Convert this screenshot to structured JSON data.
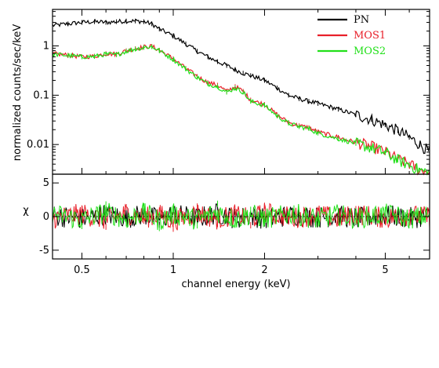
{
  "chart_data": [
    {
      "type": "line",
      "panel": "spectrum",
      "ylabel": "normalized counts/sec/keV",
      "xscale": "log",
      "yscale": "log",
      "xlim": [
        0.4,
        7.0
      ],
      "ylim": [
        0.0025,
        5.5
      ],
      "ytick_labels": [
        "1",
        "0.1",
        "0.01"
      ],
      "ytick_values": [
        1,
        0.1,
        0.01
      ],
      "legend_position": "top-right",
      "series": [
        {
          "name": "PN",
          "color": "#000000",
          "x": [
            0.4,
            0.45,
            0.5,
            0.55,
            0.6,
            0.65,
            0.7,
            0.75,
            0.8,
            0.85,
            0.9,
            1.0,
            1.1,
            1.2,
            1.3,
            1.4,
            1.5,
            1.6,
            1.7,
            1.8,
            2.0,
            2.2,
            2.4,
            2.6,
            2.8,
            3.0,
            3.5,
            4.0,
            4.5,
            5.0,
            5.5,
            6.0,
            6.5,
            7.0
          ],
          "y": [
            2.6,
            2.8,
            3.0,
            3.1,
            3.0,
            3.1,
            3.2,
            3.2,
            3.1,
            2.8,
            2.2,
            1.6,
            1.1,
            0.78,
            0.6,
            0.48,
            0.4,
            0.33,
            0.28,
            0.25,
            0.2,
            0.14,
            0.1,
            0.085,
            0.075,
            0.068,
            0.052,
            0.04,
            0.032,
            0.025,
            0.019,
            0.014,
            0.01,
            0.007
          ]
        },
        {
          "name": "MOS1",
          "color": "#e8202a",
          "x": [
            0.4,
            0.45,
            0.5,
            0.55,
            0.6,
            0.65,
            0.7,
            0.75,
            0.8,
            0.85,
            0.9,
            1.0,
            1.1,
            1.2,
            1.3,
            1.4,
            1.5,
            1.6,
            1.7,
            1.8,
            2.0,
            2.2,
            2.4,
            2.6,
            2.8,
            3.0,
            3.5,
            4.0,
            4.5,
            5.0,
            5.5,
            6.0,
            6.5,
            7.0
          ],
          "y": [
            0.7,
            0.65,
            0.6,
            0.62,
            0.7,
            0.68,
            0.8,
            0.88,
            0.95,
            0.98,
            0.82,
            0.55,
            0.35,
            0.24,
            0.18,
            0.16,
            0.12,
            0.15,
            0.12,
            0.08,
            0.065,
            0.04,
            0.028,
            0.024,
            0.022,
            0.018,
            0.014,
            0.011,
            0.009,
            0.007,
            0.005,
            0.004,
            0.003,
            0.0028
          ]
        },
        {
          "name": "MOS2",
          "color": "#22e01a",
          "x": [
            0.4,
            0.45,
            0.5,
            0.55,
            0.6,
            0.65,
            0.7,
            0.75,
            0.8,
            0.85,
            0.9,
            1.0,
            1.1,
            1.2,
            1.3,
            1.4,
            1.5,
            1.6,
            1.7,
            1.8,
            2.0,
            2.2,
            2.4,
            2.6,
            2.8,
            3.0,
            3.5,
            4.0,
            4.5,
            5.0,
            5.5,
            6.0,
            6.5,
            7.0
          ],
          "y": [
            0.68,
            0.64,
            0.6,
            0.61,
            0.68,
            0.66,
            0.78,
            0.86,
            0.93,
            0.96,
            0.8,
            0.53,
            0.34,
            0.23,
            0.17,
            0.15,
            0.115,
            0.14,
            0.115,
            0.075,
            0.062,
            0.038,
            0.027,
            0.023,
            0.021,
            0.017,
            0.013,
            0.0105,
            0.0085,
            0.0068,
            0.0048,
            0.0038,
            0.003,
            0.0027
          ]
        }
      ]
    },
    {
      "type": "line",
      "panel": "residuals",
      "ylabel": "χ",
      "xlabel": "channel energy (keV)",
      "xscale": "log",
      "xlim": [
        0.4,
        7.0
      ],
      "ylim": [
        -6.3,
        6.3
      ],
      "ytick_labels": [
        "5",
        "0",
        "-5"
      ],
      "ytick_values": [
        5,
        0,
        -5
      ],
      "xtick_labels": [
        "0.5",
        "1",
        "2",
        "5"
      ],
      "xtick_values": [
        0.5,
        1,
        2,
        5
      ],
      "series": [
        {
          "name": "PN",
          "color": "#000000",
          "x": [
            0.4,
            0.5,
            0.6,
            0.7,
            0.8,
            0.9,
            1.0,
            1.2,
            1.4,
            1.6,
            1.8,
            2.0,
            2.5,
            3.0,
            3.5,
            4.0,
            5.0,
            6.0,
            7.0
          ],
          "y": [
            0.5,
            -1.0,
            1.0,
            -0.5,
            0.8,
            -1.2,
            1.0,
            -0.6,
            1.3,
            -0.8,
            0.4,
            -1.0,
            0.6,
            -0.4,
            0.3,
            -0.8,
            0.5,
            -0.6,
            0.2
          ]
        },
        {
          "name": "MOS1",
          "color": "#e8202a",
          "x": [
            0.4,
            0.5,
            0.6,
            0.7,
            0.8,
            0.9,
            1.0,
            1.2,
            1.4,
            1.6,
            1.8,
            2.0,
            2.5,
            3.0,
            3.5,
            4.0,
            5.0,
            6.0,
            7.0
          ],
          "y": [
            -0.8,
            1.2,
            -1.5,
            1.4,
            -0.6,
            0.9,
            -1.8,
            1.5,
            -1.1,
            0.7,
            -1.3,
            1.6,
            -0.5,
            0.8,
            -0.9,
            1.1,
            -0.7,
            0.6,
            -0.3
          ]
        },
        {
          "name": "MOS2",
          "color": "#22e01a",
          "x": [
            0.4,
            0.5,
            0.6,
            0.7,
            0.8,
            0.9,
            1.0,
            1.2,
            1.4,
            1.6,
            1.8,
            2.0,
            2.5,
            3.0,
            3.5,
            4.0,
            5.0,
            6.0,
            7.0
          ],
          "y": [
            1.0,
            -1.4,
            1.8,
            -1.0,
            1.5,
            -1.7,
            1.1,
            -1.3,
            1.9,
            -1.2,
            1.0,
            -0.9,
            1.2,
            -1.1,
            0.8,
            -0.7,
            1.0,
            -0.8,
            0.4
          ]
        }
      ]
    }
  ]
}
